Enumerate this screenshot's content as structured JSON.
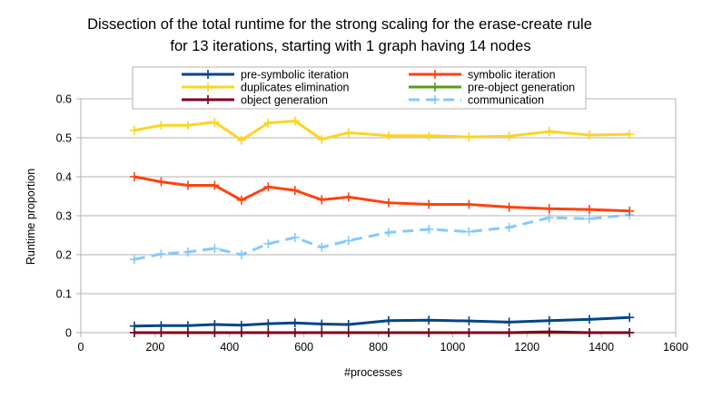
{
  "chart_data": {
    "type": "line",
    "title_line1": "Dissection of the total runtime for the strong scaling for the erase-create rule",
    "title_line2": "for 13 iterations, starting with 1 graph having 14 nodes",
    "xlabel": "#processes",
    "ylabel": "Runtime proportion",
    "xlim": [
      0,
      1600
    ],
    "ylim": [
      0,
      0.6
    ],
    "xticks": [
      "0",
      "200",
      "400",
      "600",
      "800",
      "1000",
      "1200",
      "1400",
      "1600"
    ],
    "yticks": [
      "0",
      "0.1",
      "0.2",
      "0.3",
      "0.4",
      "0.5",
      "0.6"
    ],
    "grid": "horizontal",
    "legend_position": "top",
    "x": [
      144,
      216,
      288,
      360,
      432,
      504,
      576,
      648,
      720,
      828,
      936,
      1044,
      1152,
      1260,
      1368,
      1476
    ],
    "series": [
      {
        "name": "pre-symbolic iteration",
        "color": "#004586",
        "dashed": false,
        "values": [
          0.017,
          0.018,
          0.018,
          0.021,
          0.019,
          0.023,
          0.025,
          0.022,
          0.021,
          0.031,
          0.032,
          0.03,
          0.027,
          0.031,
          0.034,
          0.039
        ]
      },
      {
        "name": "symbolic iteration",
        "color": "#ff420e",
        "dashed": false,
        "values": [
          0.4,
          0.387,
          0.378,
          0.378,
          0.34,
          0.374,
          0.365,
          0.341,
          0.348,
          0.333,
          0.329,
          0.329,
          0.322,
          0.318,
          0.316,
          0.312
        ]
      },
      {
        "name": "duplicates elimination",
        "color": "#ffd320",
        "dashed": false,
        "values": [
          0.519,
          0.532,
          0.532,
          0.54,
          0.494,
          0.538,
          0.543,
          0.496,
          0.513,
          0.505,
          0.505,
          0.502,
          0.504,
          0.516,
          0.507,
          0.509
        ]
      },
      {
        "name": "pre-object generation",
        "color": "#579d1c",
        "dashed": false,
        "values": [
          0,
          0,
          0,
          0,
          0,
          0,
          0,
          0,
          0,
          0,
          0,
          0,
          0,
          0,
          0,
          0
        ]
      },
      {
        "name": "object generation",
        "color": "#7e0021",
        "dashed": false,
        "values": [
          0,
          0,
          0,
          0,
          0,
          0,
          0,
          0,
          0,
          0,
          0,
          0,
          0,
          0.002,
          0,
          0
        ]
      },
      {
        "name": "communication",
        "color": "#83caff",
        "dashed": true,
        "values": [
          0.188,
          0.202,
          0.207,
          0.216,
          0.2,
          0.228,
          0.244,
          0.219,
          0.236,
          0.257,
          0.265,
          0.259,
          0.27,
          0.295,
          0.292,
          0.302
        ]
      }
    ]
  }
}
